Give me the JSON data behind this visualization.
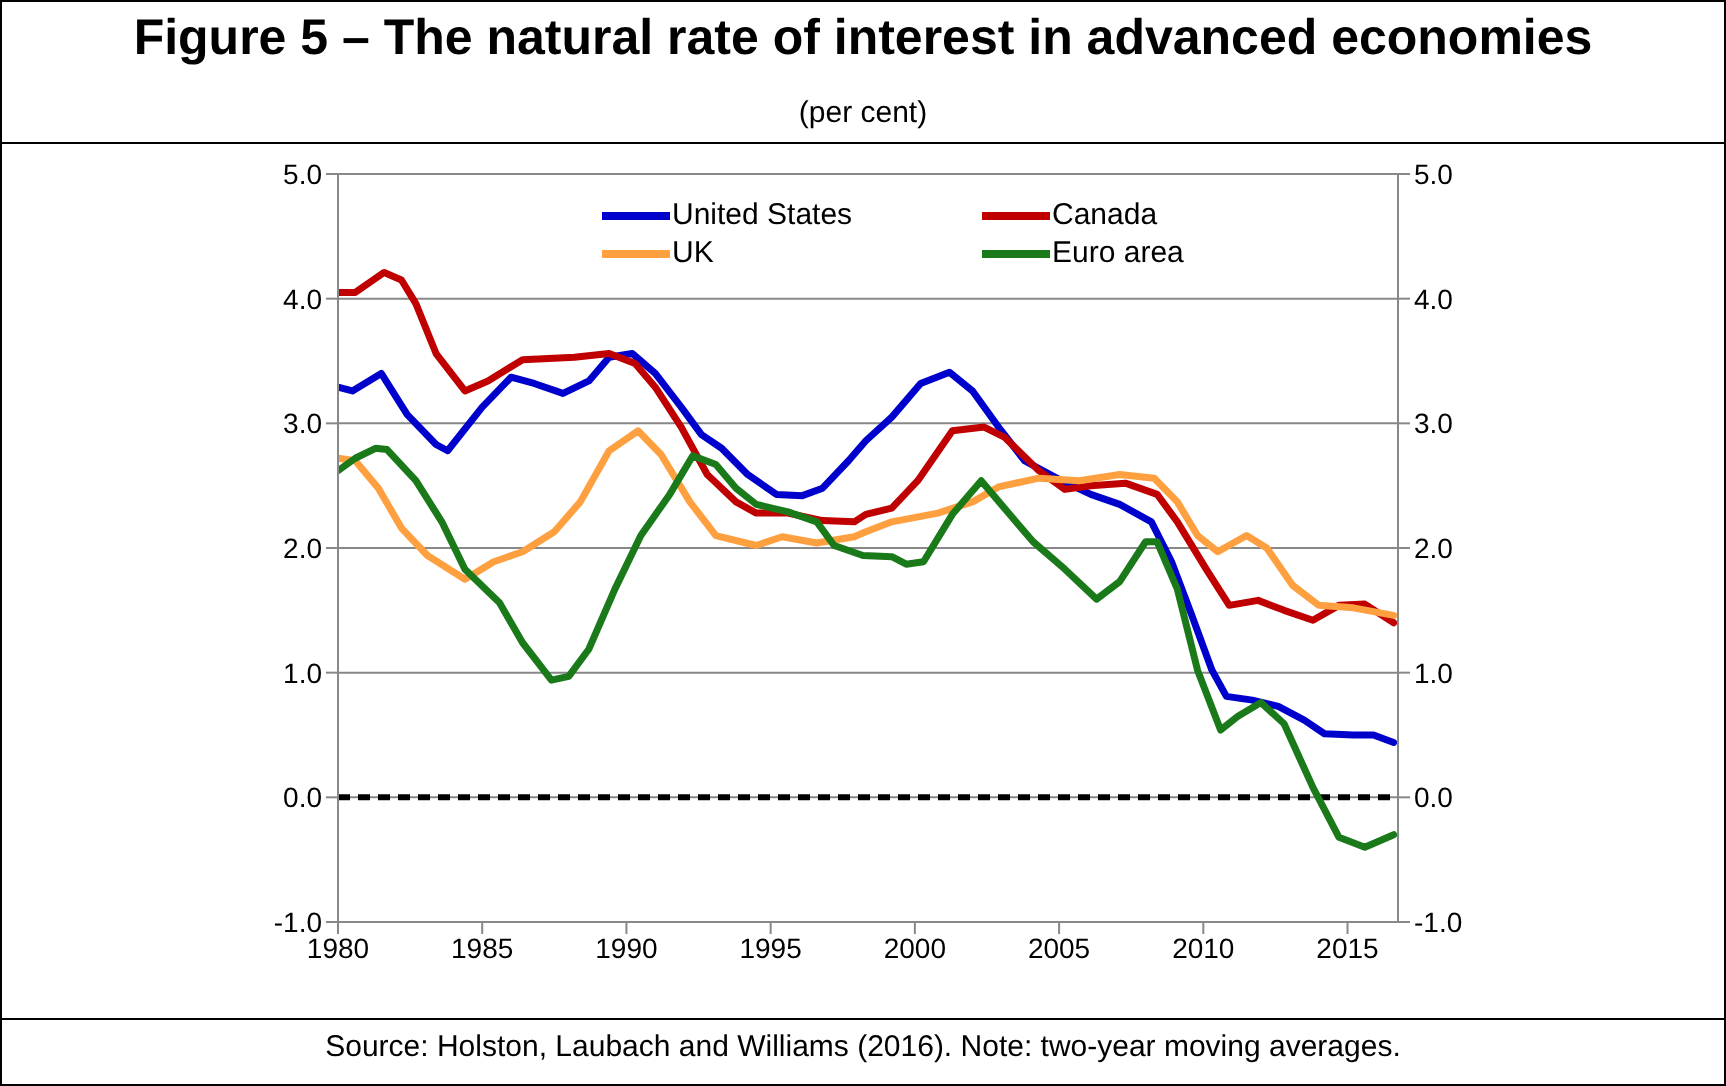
{
  "chart_data": {
    "type": "line",
    "title": "Figure 5 – The natural rate of interest in advanced economies",
    "subtitle": "(per cent)",
    "annotations": [
      "Source: Holston, Laubach and Williams (2016). Note: two-year moving averages."
    ],
    "xlim": [
      1980,
      2016.75
    ],
    "xticks": [
      1980,
      1985,
      1990,
      1995,
      2000,
      2005,
      2010,
      2015
    ],
    "ylim": [
      -1,
      5
    ],
    "yticks": [
      {
        "value": -1,
        "label": "-1.0"
      },
      {
        "value": 0,
        "label": "0.0"
      },
      {
        "value": 1,
        "label": "1.0"
      },
      {
        "value": 2,
        "label": "2.0"
      },
      {
        "value": 3,
        "label": "3.0"
      },
      {
        "value": 4,
        "label": "4.0"
      },
      {
        "value": 5,
        "label": "5.0"
      }
    ],
    "y2lim": [
      -1,
      5
    ],
    "y2ticks": [
      {
        "value": -1,
        "label": "-1.0"
      },
      {
        "value": 0,
        "label": "0.0"
      },
      {
        "value": 1,
        "label": "1.0"
      },
      {
        "value": 2,
        "label": "2.0"
      },
      {
        "value": 3,
        "label": "3.0"
      },
      {
        "value": 4,
        "label": "4.0"
      },
      {
        "value": 5,
        "label": "5.0"
      }
    ],
    "grid": "y",
    "legend": "top",
    "marker": "none",
    "line_style": "solid",
    "ref_lines": [
      {
        "axis": "y",
        "value": 0,
        "color": "#000000",
        "line_style": "dashed"
      }
    ],
    "series": [
      {
        "name": "United States",
        "color": "#0000cc",
        "x": [
          1980,
          1980.5,
          1981.5,
          1982.4,
          1983.4,
          1983.8,
          1985,
          1986,
          1986.8,
          1987.8,
          1988.7,
          1989.4,
          1990.2,
          1991,
          1991.9,
          1992.6,
          1993.3,
          1994.2,
          1995.2,
          1996.1,
          1996.8,
          1997.7,
          1998.3,
          1999.2,
          2000.2,
          2001.2,
          2002,
          2002.9,
          2003.8,
          2005,
          2006.1,
          2007.1,
          2008.2,
          2008.9,
          2009.6,
          2010.3,
          2010.8,
          2011.7,
          2012.6,
          2013.5,
          2014.2,
          2015.2,
          2015.9,
          2016.6
        ],
        "values": [
          3.29,
          3.26,
          3.4,
          3.07,
          2.83,
          2.78,
          3.13,
          3.37,
          3.32,
          3.24,
          3.34,
          3.53,
          3.56,
          3.4,
          3.13,
          2.91,
          2.8,
          2.59,
          2.43,
          2.42,
          2.48,
          2.7,
          2.86,
          3.05,
          3.32,
          3.41,
          3.26,
          2.97,
          2.7,
          2.55,
          2.43,
          2.35,
          2.21,
          1.89,
          1.46,
          1.02,
          0.81,
          0.78,
          0.73,
          0.62,
          0.51,
          0.5,
          0.5,
          0.44
        ]
      },
      {
        "name": "Canada",
        "color": "#c00000",
        "x": [
          1980,
          1980.6,
          1981.6,
          1982.2,
          1982.7,
          1983.4,
          1984.4,
          1985.2,
          1986.4,
          1987.3,
          1988.2,
          1989.4,
          1990.3,
          1991,
          1991.9,
          1992.8,
          1993.8,
          1994.5,
          1995.6,
          1996.8,
          1997.9,
          1998.3,
          1999.2,
          2000.1,
          2001.3,
          2002.4,
          2003.1,
          2004.3,
          2005.2,
          2006.1,
          2007.3,
          2008.4,
          2009.1,
          2010.1,
          2010.9,
          2011.9,
          2012.8,
          2013.8,
          2014.7,
          2015.6,
          2016.6
        ],
        "values": [
          4.05,
          4.05,
          4.21,
          4.15,
          3.96,
          3.56,
          3.26,
          3.34,
          3.51,
          3.52,
          3.53,
          3.56,
          3.48,
          3.29,
          2.97,
          2.59,
          2.37,
          2.28,
          2.28,
          2.22,
          2.21,
          2.27,
          2.32,
          2.54,
          2.94,
          2.97,
          2.89,
          2.62,
          2.47,
          2.5,
          2.52,
          2.43,
          2.21,
          1.83,
          1.54,
          1.58,
          1.5,
          1.42,
          1.54,
          1.55,
          1.4
        ]
      },
      {
        "name": "UK",
        "color": "#ffa040",
        "x": [
          1980,
          1980.6,
          1981.4,
          1982.2,
          1983.1,
          1984.4,
          1985.4,
          1986.4,
          1987.5,
          1988.4,
          1989.4,
          1990.4,
          1991.2,
          1992.2,
          1993.1,
          1994.5,
          1995.4,
          1996.6,
          1997.9,
          1998.3,
          1999.2,
          2000.8,
          2002,
          2002.9,
          2004.3,
          2005.7,
          2007.1,
          2008.3,
          2009.1,
          2009.8,
          2010.5,
          2011.5,
          2012.2,
          2013.1,
          2014,
          2015.2,
          2016.6
        ],
        "values": [
          2.72,
          2.7,
          2.48,
          2.16,
          1.94,
          1.75,
          1.89,
          1.97,
          2.13,
          2.37,
          2.78,
          2.94,
          2.75,
          2.37,
          2.1,
          2.02,
          2.09,
          2.04,
          2.09,
          2.13,
          2.21,
          2.28,
          2.37,
          2.49,
          2.56,
          2.54,
          2.59,
          2.56,
          2.37,
          2.1,
          1.97,
          2.1,
          2,
          1.7,
          1.54,
          1.52,
          1.46
        ]
      },
      {
        "name": "Euro area",
        "color": "#1a7a1a",
        "x": [
          1980,
          1980.6,
          1981.3,
          1981.7,
          1982.7,
          1983.6,
          1984.4,
          1985.6,
          1986.4,
          1987.4,
          1988,
          1988.7,
          1989.6,
          1990.5,
          1991.5,
          1992.3,
          1993.1,
          1993.8,
          1994.5,
          1995.6,
          1996.6,
          1997.2,
          1998.2,
          1999.2,
          1999.7,
          2000.3,
          2001.3,
          2002.3,
          2003.1,
          2004.1,
          2005.2,
          2006.3,
          2007.1,
          2008,
          2008.4,
          2009.1,
          2009.8,
          2010.6,
          2011.2,
          2012,
          2012.8,
          2013.8,
          2014.7,
          2015.6,
          2016.6
        ],
        "values": [
          2.62,
          2.72,
          2.8,
          2.79,
          2.54,
          2.21,
          1.83,
          1.56,
          1.24,
          0.94,
          0.97,
          1.19,
          1.67,
          2.1,
          2.43,
          2.74,
          2.67,
          2.48,
          2.35,
          2.29,
          2.21,
          2.02,
          1.94,
          1.93,
          1.87,
          1.89,
          2.27,
          2.54,
          2.32,
          2.05,
          1.83,
          1.59,
          1.73,
          2.05,
          2.05,
          1.67,
          1.02,
          0.54,
          0.65,
          0.76,
          0.59,
          0.08,
          -0.32,
          -0.4,
          -0.3
        ]
      }
    ]
  }
}
